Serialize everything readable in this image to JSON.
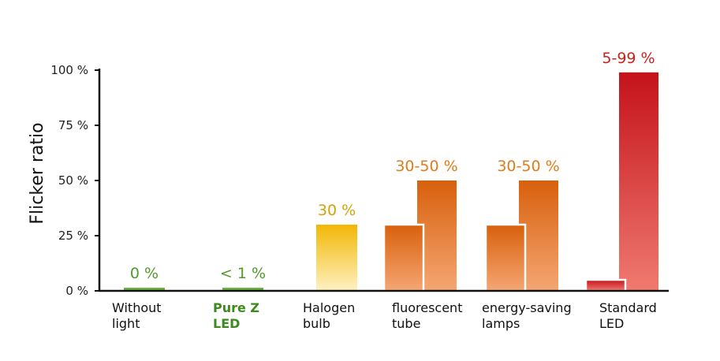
{
  "chart_data": {
    "type": "bar",
    "title": "",
    "xlabel": "",
    "ylabel": "Flicker ratio",
    "ylim": [
      0,
      100
    ],
    "yticks": [
      {
        "value": 0,
        "label": "0 %"
      },
      {
        "value": 25,
        "label": "25 %"
      },
      {
        "value": 50,
        "label": "50 %"
      },
      {
        "value": 75,
        "label": "75 %"
      },
      {
        "value": 100,
        "label": "100 %"
      }
    ],
    "categories": [
      {
        "lines": [
          "Without",
          "light"
        ],
        "highlight": false
      },
      {
        "lines": [
          "Pure Z",
          "LED"
        ],
        "highlight": true
      },
      {
        "lines": [
          "Halogen",
          "bulb"
        ],
        "highlight": false
      },
      {
        "lines": [
          "fluorescent",
          "tube"
        ],
        "highlight": false
      },
      {
        "lines": [
          "energy-saving",
          "lamps"
        ],
        "highlight": false
      },
      {
        "lines": [
          "Standard",
          "LED"
        ],
        "highlight": false
      }
    ],
    "bars": [
      {
        "category": 0,
        "min": 0,
        "max": 0,
        "label": "0 %",
        "label_color": "#4e9a2a",
        "style": "flat",
        "color_top": "#6cb33f",
        "color_bottom": "#6cb33f"
      },
      {
        "category": 1,
        "min": 0,
        "max": 1,
        "label": "< 1 %",
        "label_color": "#4e9a2a",
        "style": "flat",
        "color_top": "#6cb33f",
        "color_bottom": "#6cb33f"
      },
      {
        "category": 2,
        "min": 30,
        "max": 30,
        "label": "30 %",
        "label_color": "#d4a20a",
        "style": "single",
        "color_top": "#f2b705",
        "color_bottom": "#fff1c2"
      },
      {
        "category": 3,
        "min": 30,
        "max": 50,
        "label": "30-50 %",
        "label_color": "#e07b1a",
        "style": "range",
        "color_top": "#d8600c",
        "color_bottom": "#f5a673"
      },
      {
        "category": 4,
        "min": 30,
        "max": 50,
        "label": "30-50 %",
        "label_color": "#e07b1a",
        "style": "range",
        "color_top": "#d8600c",
        "color_bottom": "#f5a673"
      },
      {
        "category": 5,
        "min": 5,
        "max": 99,
        "label": "5-99 %",
        "label_color": "#c8201e",
        "style": "range",
        "color_top": "#c4121a",
        "color_bottom": "#f07a70"
      }
    ]
  }
}
